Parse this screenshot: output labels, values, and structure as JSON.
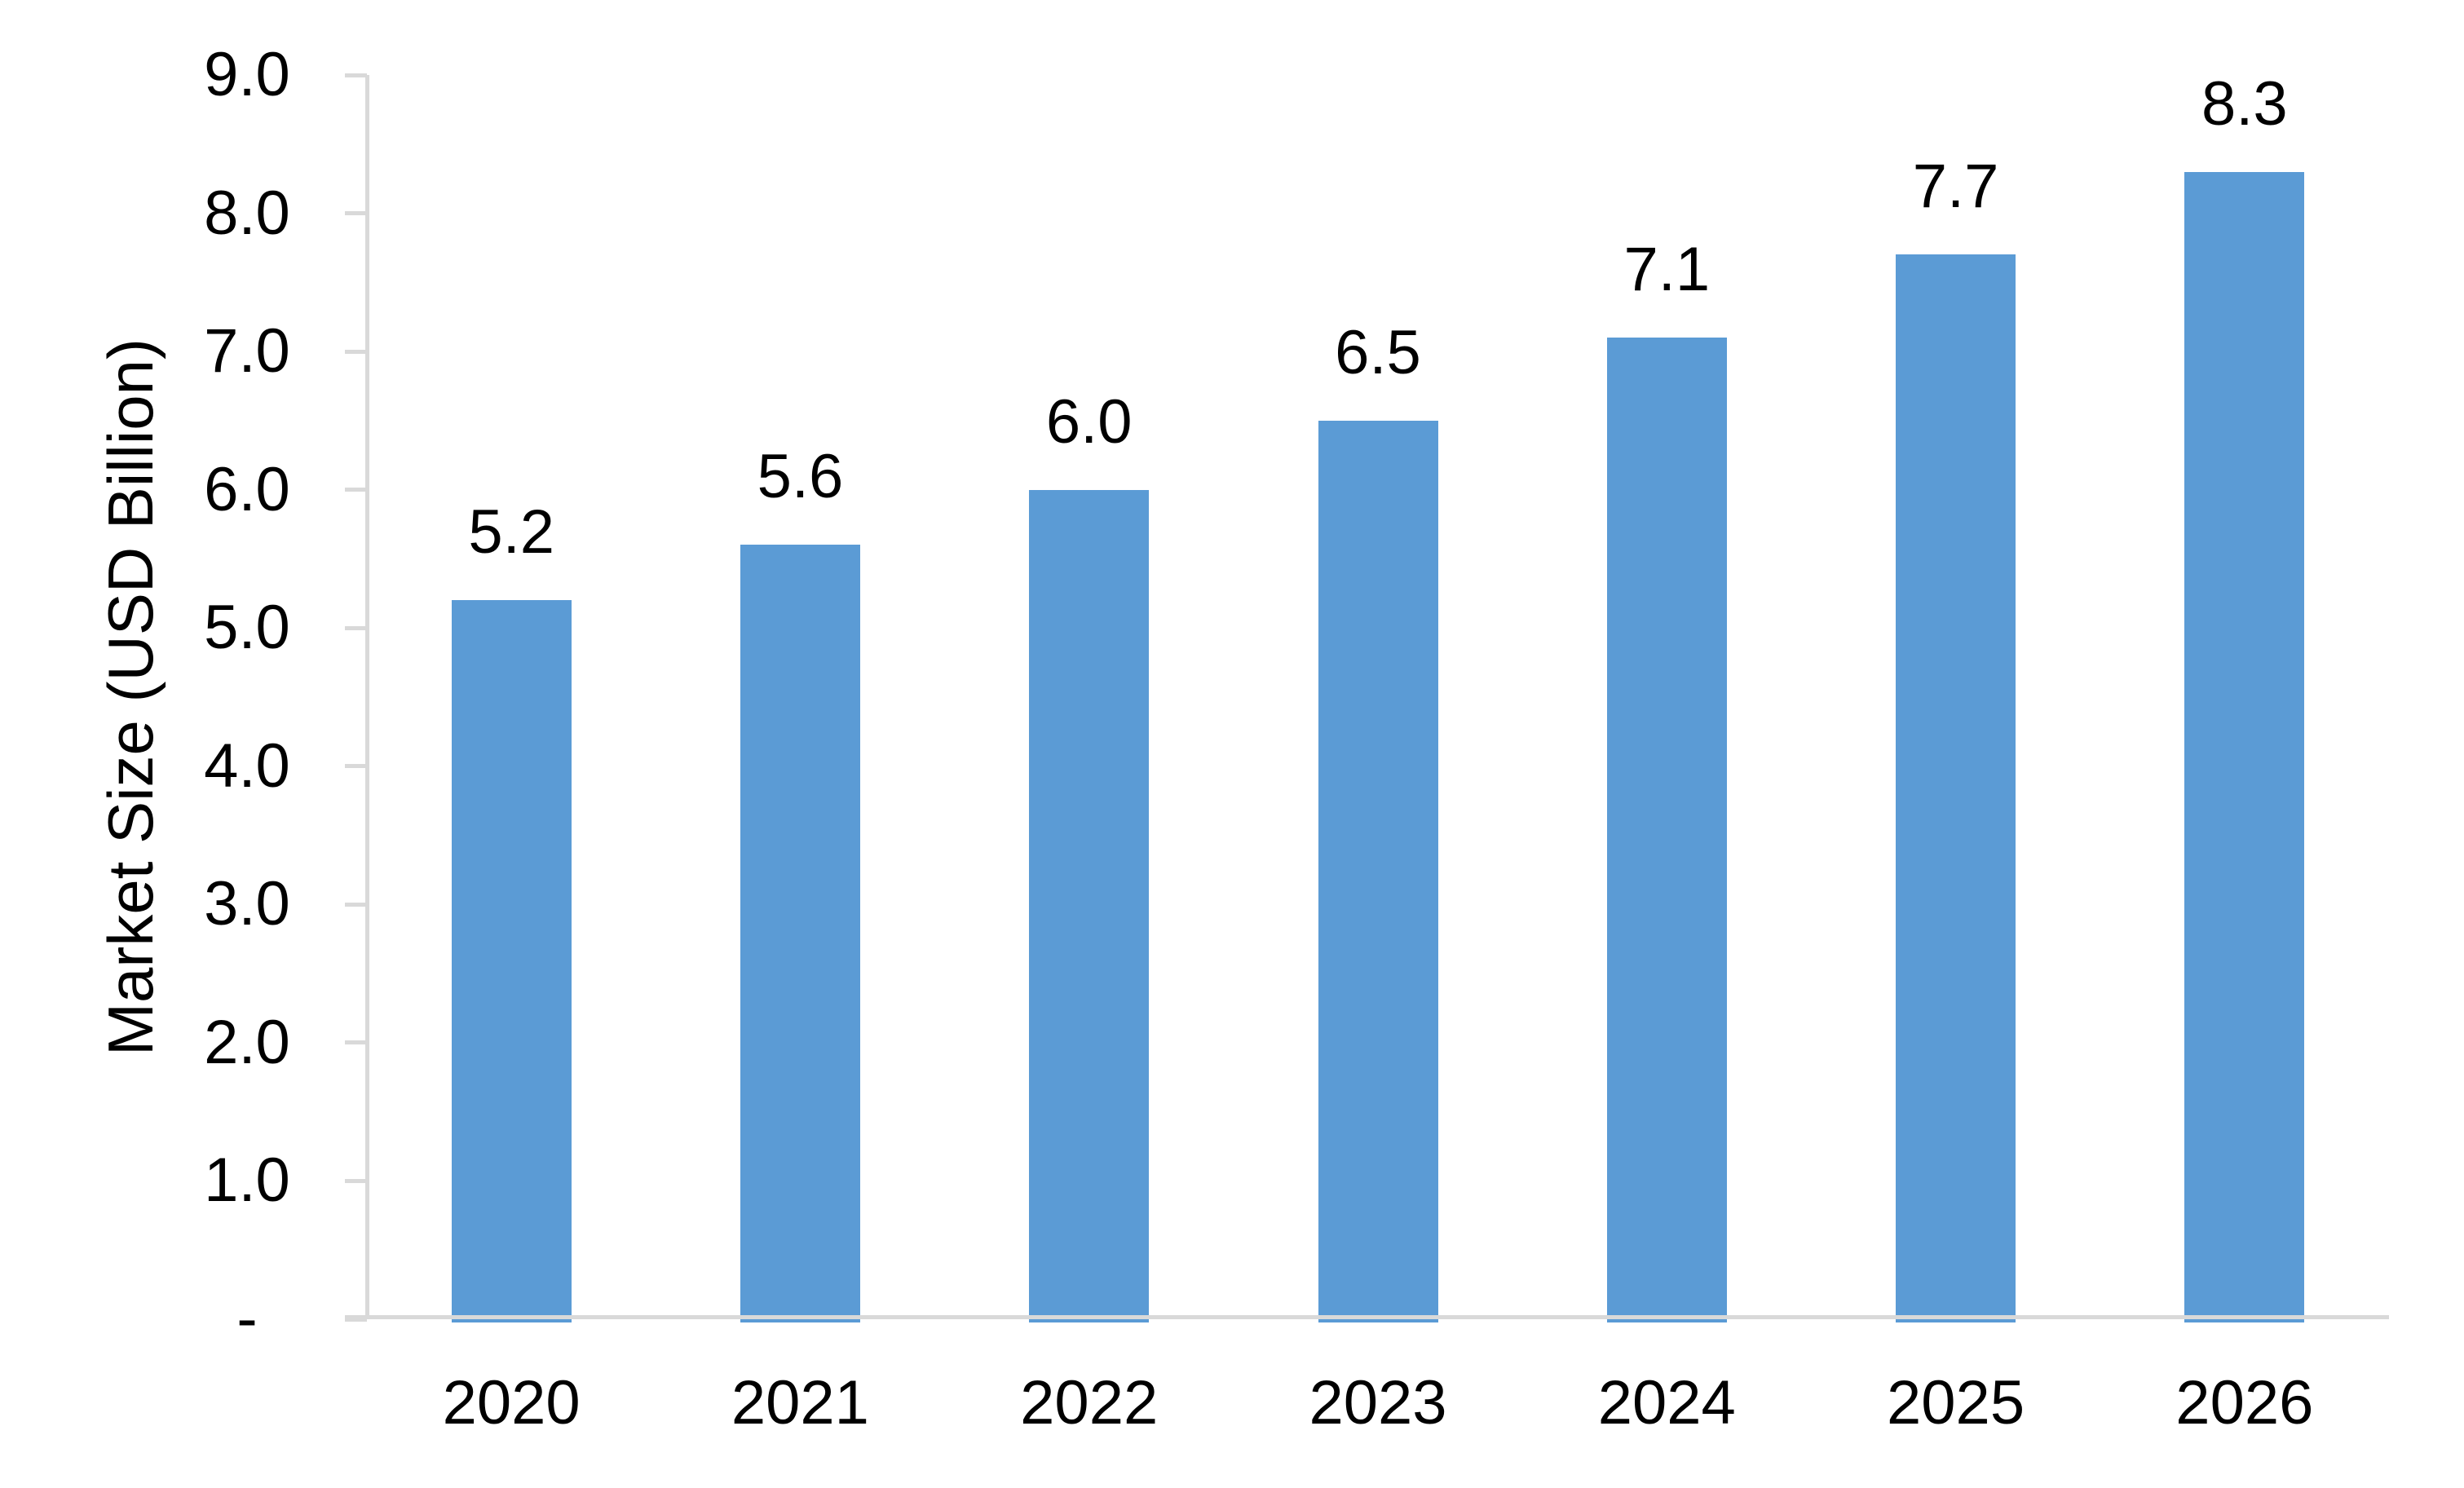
{
  "chart_data": {
    "type": "bar",
    "title": "",
    "xlabel": "",
    "ylabel": "Market Size (USD Billion)",
    "categories": [
      "2020",
      "2021",
      "2022",
      "2023",
      "2024",
      "2025",
      "2026"
    ],
    "values": [
      5.2,
      5.6,
      6.0,
      6.5,
      7.1,
      7.7,
      8.3
    ],
    "data_labels": [
      "5.2",
      "5.6",
      "6.0",
      "6.5",
      "7.1",
      "7.7",
      "8.3"
    ],
    "ylim": [
      0,
      9
    ],
    "ytick_step": 1,
    "ytick_labels": [
      "-",
      "1.0",
      "2.0",
      "3.0",
      "4.0",
      "5.0",
      "6.0",
      "7.0",
      "8.0",
      "9.0"
    ],
    "grid": false,
    "legend": "none",
    "bar_color": "#5B9BD5",
    "axis_color": "#D9D9D9",
    "text_color": "#000000",
    "background_color": "#FFFFFF"
  }
}
